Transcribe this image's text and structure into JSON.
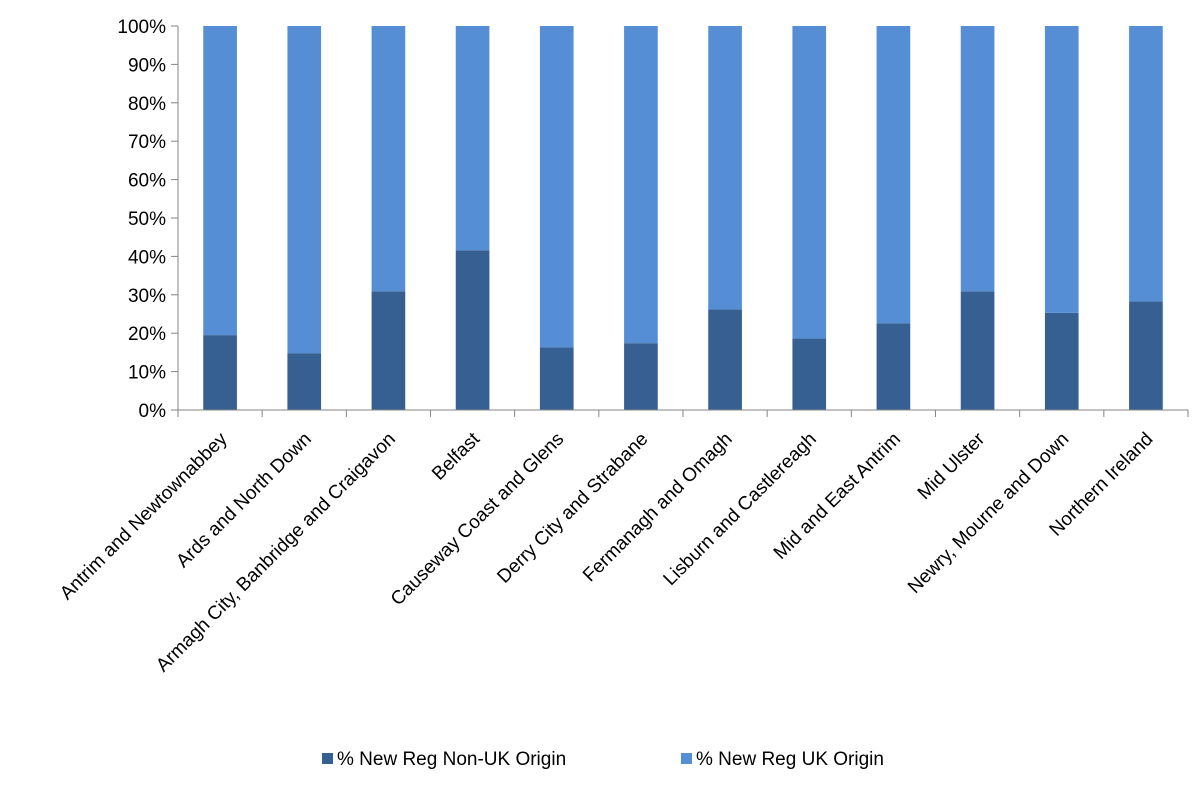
{
  "chart_data": {
    "type": "bar",
    "stacked": true,
    "normalized_percent": true,
    "categories": [
      "Antrim and Newtownabbey",
      "Ards and North Down",
      "Armagh City, Banbridge and Craigavon",
      "Belfast",
      "Causeway Coast and Glens",
      "Derry City and Strabane",
      "Fermanagh and Omagh",
      "Lisburn and Castlereagh",
      "Mid and East Antrim",
      "Mid Ulster",
      "Newry, Mourne and Down",
      "Northern Ireland"
    ],
    "series": [
      {
        "name": "% New Reg Non-UK Origin",
        "color": "#376092",
        "values": [
          19.5,
          14.8,
          30.9,
          41.6,
          16.3,
          17.4,
          26.2,
          18.6,
          22.6,
          30.9,
          25.3,
          28.3
        ]
      },
      {
        "name": "% New Reg UK Origin",
        "color": "#558ED5",
        "values": [
          80.5,
          85.2,
          69.1,
          58.4,
          83.7,
          82.6,
          73.8,
          81.4,
          77.4,
          69.1,
          74.7,
          71.7
        ]
      }
    ],
    "ylim": [
      0,
      100
    ],
    "yticks": [
      "0%",
      "10%",
      "20%",
      "30%",
      "40%",
      "50%",
      "60%",
      "70%",
      "80%",
      "90%",
      "100%"
    ],
    "title": "",
    "xlabel": "",
    "ylabel": "",
    "grid": false,
    "legend_position": "bottom"
  }
}
